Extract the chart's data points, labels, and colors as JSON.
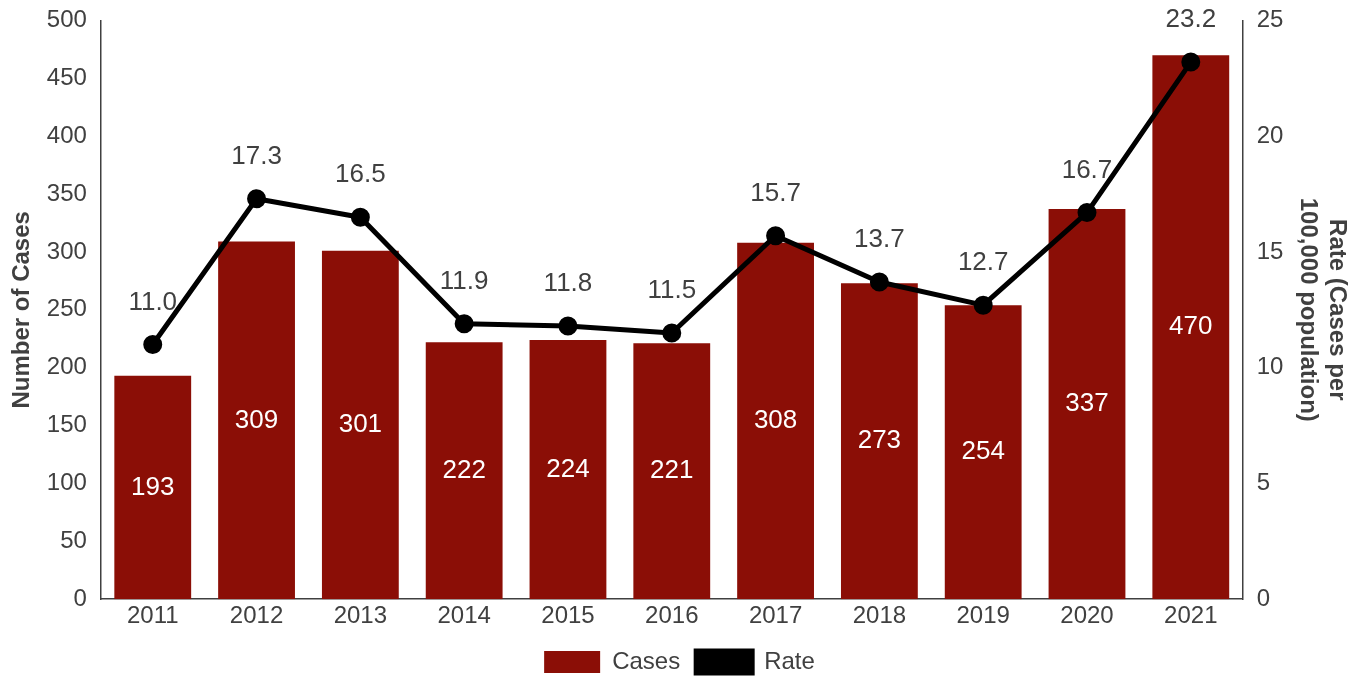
{
  "chart_data": {
    "type": "bar",
    "categories": [
      "2011",
      "2012",
      "2013",
      "2014",
      "2015",
      "2016",
      "2017",
      "2018",
      "2019",
      "2020",
      "2021"
    ],
    "ylabel": "Number of Cases",
    "y2label": "Rate (Cases per 100,000 population)",
    "series": [
      {
        "name": "Cases",
        "color": "#8b0e06",
        "values": [
          193,
          309,
          301,
          222,
          224,
          221,
          308,
          273,
          254,
          337,
          470
        ],
        "value_labels": [
          "193",
          "309",
          "301",
          "222",
          "224",
          "221",
          "308",
          "273",
          "254",
          "337",
          "470"
        ]
      },
      {
        "name": "Rate",
        "type": "line",
        "axis": "y2",
        "color": "#000000",
        "values": [
          11.0,
          17.3,
          16.5,
          11.9,
          11.8,
          11.5,
          15.7,
          13.7,
          12.7,
          16.7,
          23.2
        ],
        "value_labels": [
          "11.0",
          "17.3",
          "16.5",
          "11.9",
          "11.8",
          "11.5",
          "15.7",
          "13.7",
          "12.7",
          "16.7",
          "23.2"
        ]
      }
    ],
    "ylim": [
      0,
      500
    ],
    "yticks": [
      0,
      50,
      100,
      150,
      200,
      250,
      300,
      350,
      400,
      450,
      500
    ],
    "y2lim": [
      0,
      25
    ],
    "y2ticks": [
      0,
      5,
      10,
      15,
      20,
      25
    ],
    "legend": "bottom",
    "marker": "circle",
    "line_style": "solid",
    "grid": false
  }
}
